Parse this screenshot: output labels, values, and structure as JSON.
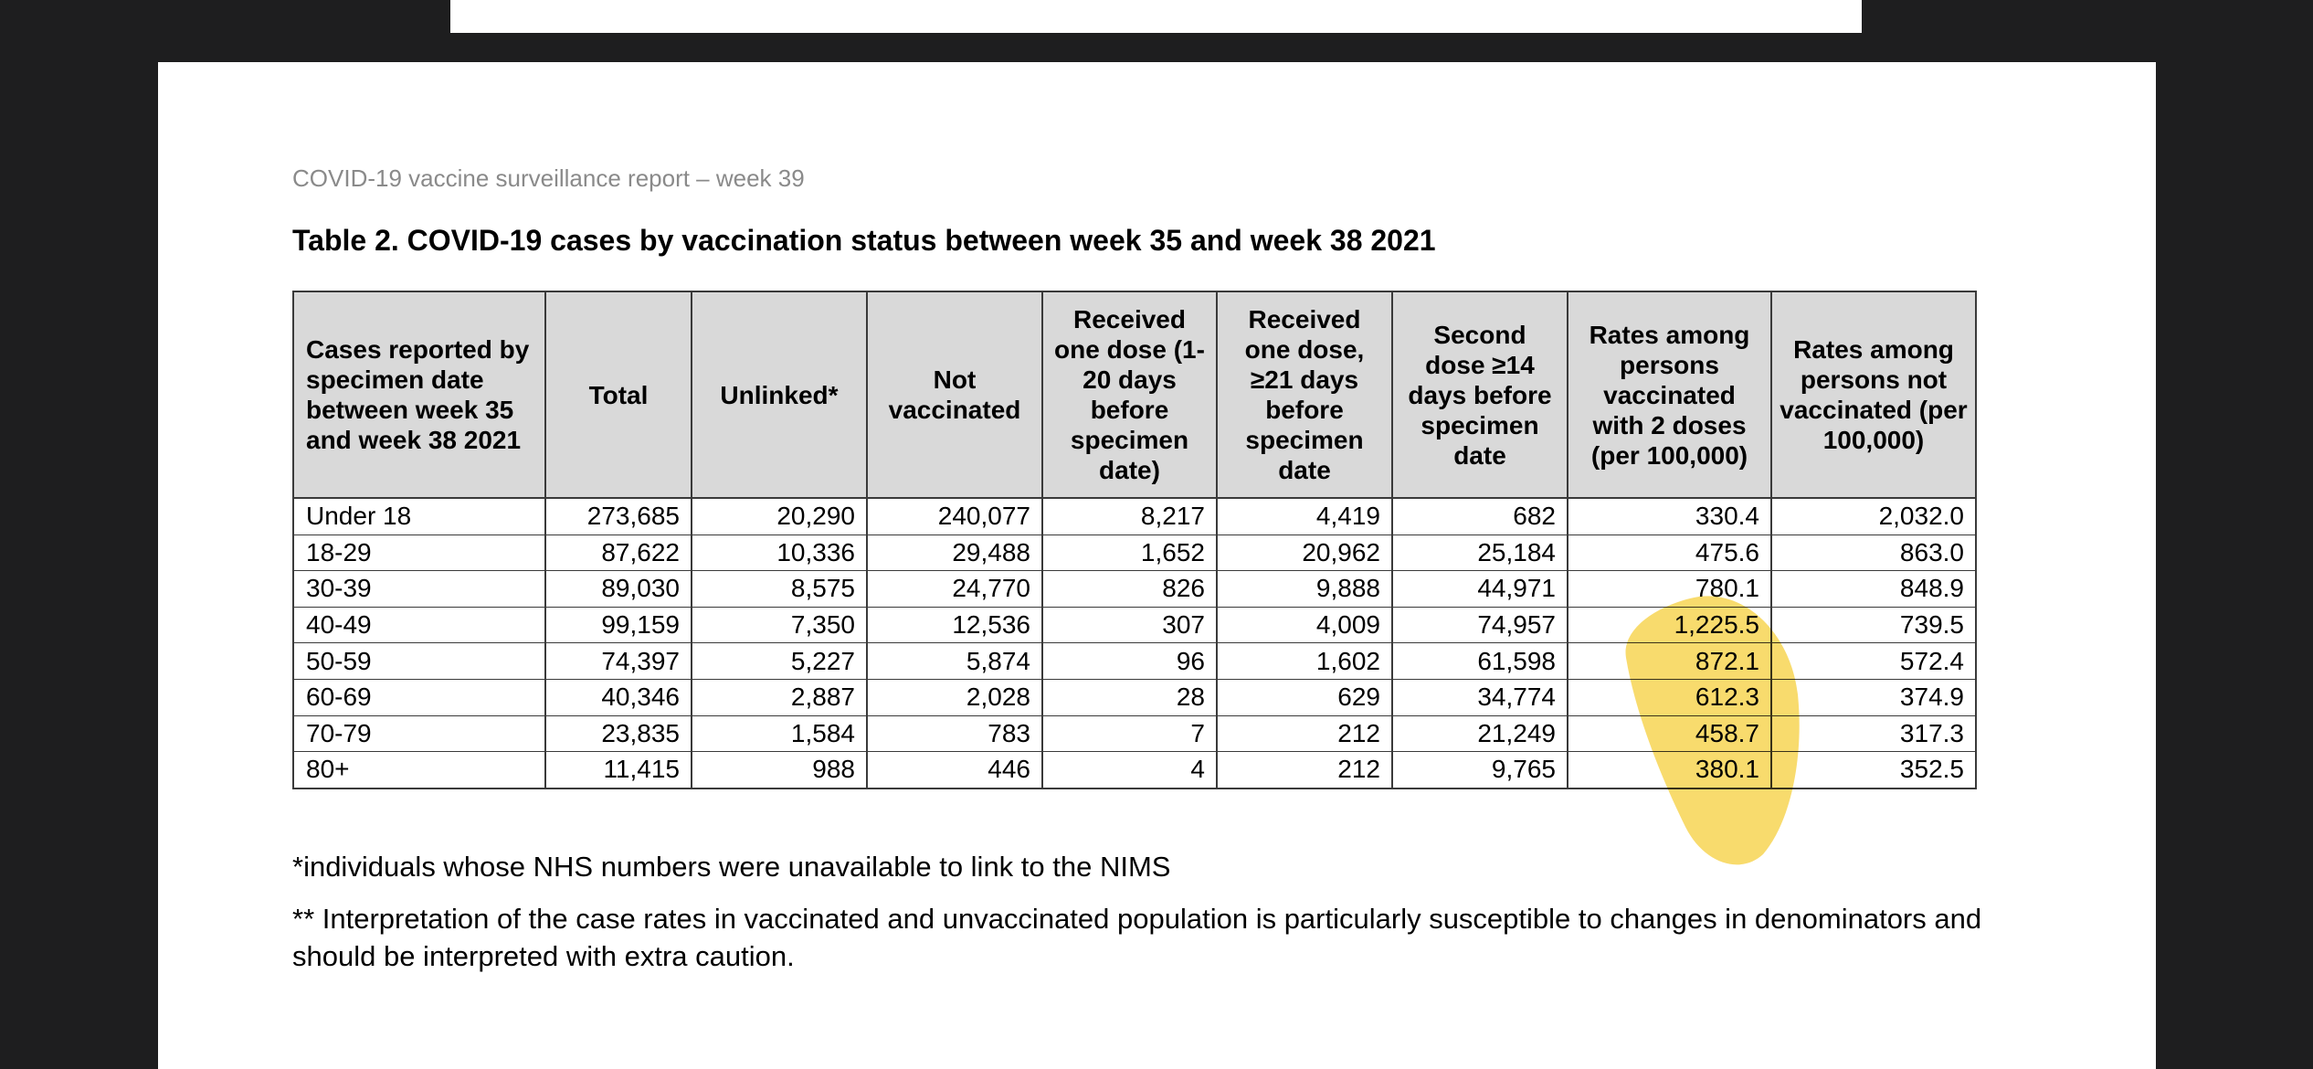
{
  "header": {
    "running_title": "COVID-19 vaccine surveillance report – week 39",
    "title": "Table 2. COVID-19 cases by vaccination status between week 35 and week 38 2021"
  },
  "table": {
    "columns": [
      "Cases reported by specimen date between week 35 and week 38 2021",
      "Total",
      "Unlinked*",
      "Not vaccinated",
      "Received one dose (1-20 days before specimen date)",
      "Received one dose, ≥21 days before specimen date",
      "Second dose ≥14 days before specimen date",
      "Rates among persons vaccinated with 2 doses (per 100,000)",
      "Rates among persons not vaccinated (per 100,000)"
    ],
    "rows": [
      [
        "Under 18",
        "273,685",
        "20,290",
        "240,077",
        "8,217",
        "4,419",
        "682",
        "330.4",
        "2,032.0"
      ],
      [
        "18-29",
        "87,622",
        "10,336",
        "29,488",
        "1,652",
        "20,962",
        "25,184",
        "475.6",
        "863.0"
      ],
      [
        "30-39",
        "89,030",
        "8,575",
        "24,770",
        "826",
        "9,888",
        "44,971",
        "780.1",
        "848.9"
      ],
      [
        "40-49",
        "99,159",
        "7,350",
        "12,536",
        "307",
        "4,009",
        "74,957",
        "1,225.5",
        "739.5"
      ],
      [
        "50-59",
        "74,397",
        "5,227",
        "5,874",
        "96",
        "1,602",
        "61,598",
        "872.1",
        "572.4"
      ],
      [
        "60-69",
        "40,346",
        "2,887",
        "2,028",
        "28",
        "629",
        "34,774",
        "612.3",
        "374.9"
      ],
      [
        "70-79",
        "23,835",
        "1,584",
        "783",
        "7",
        "212",
        "21,249",
        "458.7",
        "317.3"
      ],
      [
        "80+",
        "11,415",
        "988",
        "446",
        "4",
        "212",
        "9,765",
        "380.1",
        "352.5"
      ]
    ]
  },
  "footnotes": [
    "*individuals whose NHS numbers were unavailable to link to the NIMS",
    "** Interpretation of the case rates in vaccinated and unvaccinated population is particularly susceptible to changes in denominators and should be interpreted with extra caution."
  ]
}
